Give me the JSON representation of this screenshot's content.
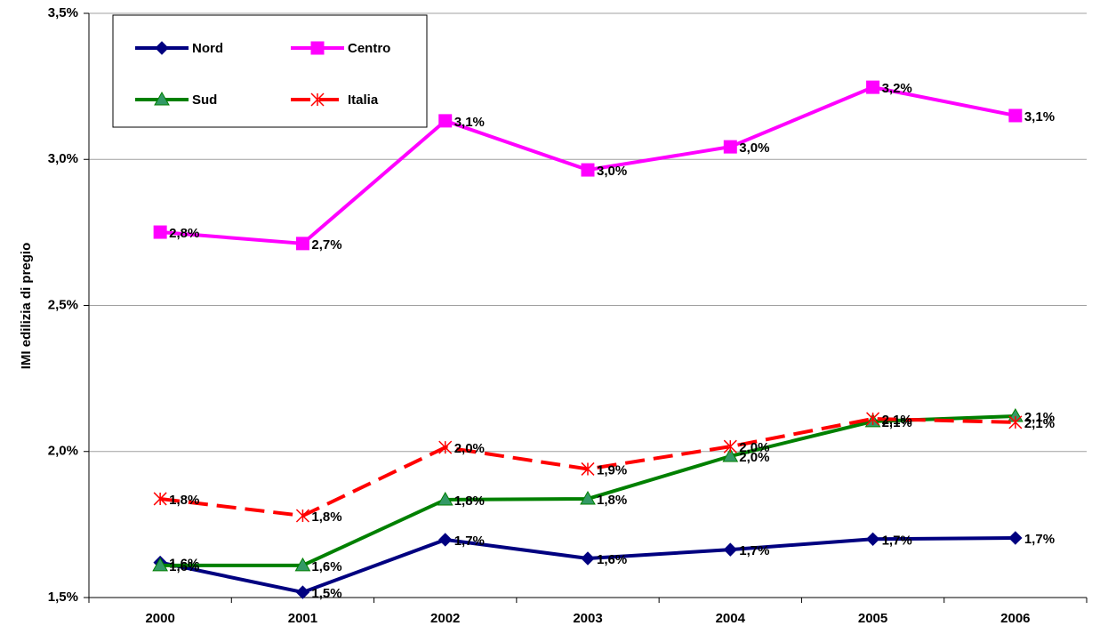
{
  "chart_data": {
    "type": "line",
    "y_label": "IMI edilizia di pregio",
    "categories": [
      "2000",
      "2001",
      "2002",
      "2003",
      "2004",
      "2005",
      "2006"
    ],
    "ylim": [
      1.5,
      3.5
    ],
    "yticks": [
      {
        "value": 1.5,
        "label": "1,5%"
      },
      {
        "value": 2.0,
        "label": "2,0%"
      },
      {
        "value": 2.5,
        "label": "2,5%"
      },
      {
        "value": 3.0,
        "label": "3,0%"
      },
      {
        "value": 3.5,
        "label": "3,5%"
      }
    ],
    "grid": true,
    "legend": "top-left",
    "series": [
      {
        "name": "Nord",
        "color": "#000080",
        "marker": "diamond",
        "dashed": false,
        "values": [
          1.62,
          1.518,
          1.698,
          1.634,
          1.664,
          1.7,
          1.704
        ],
        "value_labels": [
          "1,6%",
          "1,5%",
          "1,7%",
          "1,6%",
          "1,7%",
          "1,7%",
          "1,7%"
        ]
      },
      {
        "name": "Centro",
        "color": "#ff00ff",
        "marker": "square",
        "dashed": false,
        "values": [
          2.751,
          2.712,
          3.132,
          2.964,
          3.043,
          3.247,
          3.15
        ],
        "value_labels": [
          "2,8%",
          "2,7%",
          "3,1%",
          "3,0%",
          "3,0%",
          "3,2%",
          "3,1%"
        ]
      },
      {
        "name": "Sud",
        "color": "#008000",
        "marker": "triangle",
        "dashed": false,
        "values": [
          1.61,
          1.61,
          1.835,
          1.838,
          1.984,
          2.103,
          2.121
        ],
        "value_labels": [
          "1,6%",
          "1,6%",
          "1,8%",
          "1,8%",
          "2,0%",
          "2,1%",
          "2,1%"
        ]
      },
      {
        "name": "Italia",
        "color": "#ff0000",
        "marker": "star",
        "dashed": true,
        "values": [
          1.838,
          1.78,
          2.014,
          1.94,
          2.017,
          2.112,
          2.1
        ],
        "value_labels": [
          "1,8%",
          "1,8%",
          "2,0%",
          "1,9%",
          "2,0%",
          "2,1%",
          "2,1%"
        ]
      }
    ]
  }
}
